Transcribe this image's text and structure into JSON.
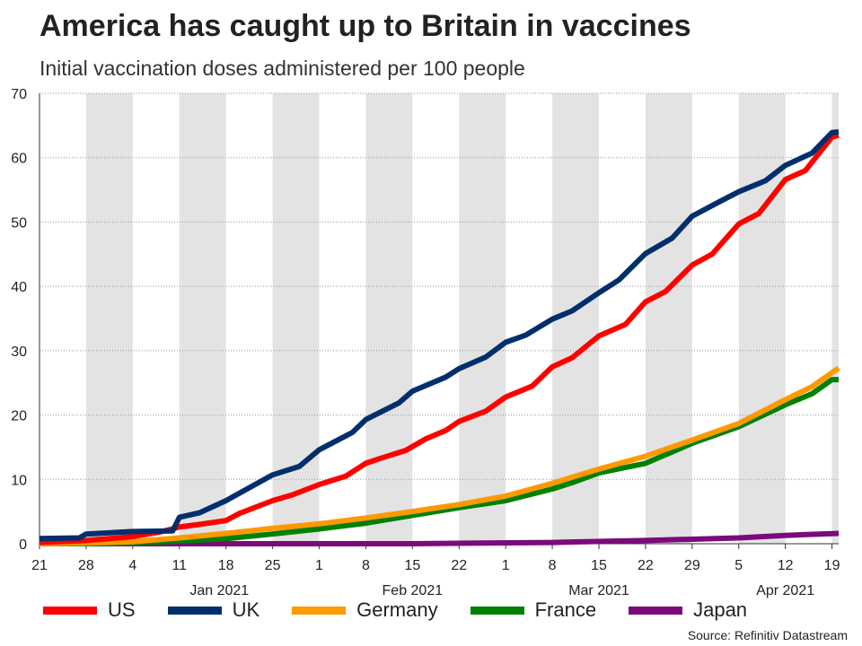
{
  "header": {
    "title": "America has caught up to Britain in vaccines",
    "subtitle": "Initial vaccination doses administered per 100 people"
  },
  "source": "Source: Refinitiv Datastream",
  "chart_data": {
    "type": "line",
    "title": "America has caught up to Britain in vaccines",
    "subtitle": "Initial vaccination doses administered per 100 people",
    "xlabel": "",
    "ylabel": "Initial vaccination doses administered per 100 people",
    "x_start": "2020-12-21",
    "x_days": 120,
    "ylim": [
      0,
      70
    ],
    "y_ticks": [
      0,
      10,
      20,
      30,
      40,
      50,
      60,
      70
    ],
    "y_tick_labels": [
      "0",
      "10",
      "20",
      "30",
      "40",
      "50",
      "60",
      "70"
    ],
    "x_ticks": [
      {
        "day": 0,
        "label": "21"
      },
      {
        "day": 7,
        "label": "28"
      },
      {
        "day": 14,
        "label": "4"
      },
      {
        "day": 21,
        "label": "11"
      },
      {
        "day": 28,
        "label": "18"
      },
      {
        "day": 35,
        "label": "25"
      },
      {
        "day": 42,
        "label": "1"
      },
      {
        "day": 49,
        "label": "8"
      },
      {
        "day": 56,
        "label": "15"
      },
      {
        "day": 63,
        "label": "22"
      },
      {
        "day": 70,
        "label": "1"
      },
      {
        "day": 77,
        "label": "8"
      },
      {
        "day": 84,
        "label": "15"
      },
      {
        "day": 91,
        "label": "22"
      },
      {
        "day": 98,
        "label": "29"
      },
      {
        "day": 105,
        "label": "5"
      },
      {
        "day": 112,
        "label": "12"
      },
      {
        "day": 119,
        "label": "19"
      }
    ],
    "month_labels": [
      {
        "day": 27,
        "label": "Jan 2021"
      },
      {
        "day": 56,
        "label": "Feb 2021"
      },
      {
        "day": 84,
        "label": "Mar 2021"
      },
      {
        "day": 112,
        "label": "Apr 2021"
      }
    ],
    "shaded_week_starts": [
      7,
      21,
      35,
      49,
      63,
      77,
      91,
      105,
      119
    ],
    "grid": true,
    "legend_position": "bottom",
    "series": [
      {
        "name": "US",
        "color": "#ff0000",
        "x": [
          0,
          7,
          14,
          18,
          21,
          24,
          28,
          30,
          35,
          38,
          42,
          46,
          49,
          51,
          55,
          58,
          61,
          63,
          67,
          70,
          74,
          77,
          80,
          84,
          88,
          91,
          94,
          98,
          101,
          105,
          108,
          112,
          115,
          119,
          120
        ],
        "y": [
          0.2,
          0.5,
          1.1,
          1.8,
          2.6,
          3.0,
          3.6,
          4.7,
          6.7,
          7.6,
          9.2,
          10.5,
          12.5,
          13.2,
          14.5,
          16.3,
          17.6,
          19.0,
          20.6,
          22.8,
          24.5,
          27.5,
          28.9,
          32.3,
          34.1,
          37.6,
          39.2,
          43.3,
          45.0,
          49.7,
          51.3,
          56.6,
          58.0,
          63.2,
          63.5
        ]
      },
      {
        "name": "UK",
        "color": "#002f6c",
        "x": [
          0,
          6,
          7,
          14,
          20,
          21,
          24,
          28,
          35,
          39,
          42,
          47,
          49,
          54,
          56,
          61,
          63,
          67,
          70,
          73,
          77,
          80,
          84,
          87,
          91,
          95,
          98,
          102,
          105,
          109,
          112,
          116,
          119,
          120
        ],
        "y": [
          0.8,
          0.9,
          1.5,
          1.9,
          2.0,
          4.1,
          4.8,
          6.7,
          10.7,
          12.0,
          14.6,
          17.3,
          19.3,
          21.9,
          23.7,
          25.9,
          27.2,
          29.0,
          31.3,
          32.4,
          34.9,
          36.2,
          39.0,
          41.0,
          45.1,
          47.5,
          50.9,
          53.1,
          54.7,
          56.4,
          58.8,
          60.7,
          63.9,
          64.0
        ]
      },
      {
        "name": "Germany",
        "color": "#ff9900",
        "x": [
          0,
          7,
          14,
          21,
          28,
          35,
          42,
          49,
          56,
          63,
          70,
          77,
          84,
          91,
          98,
          105,
          112,
          116,
          120
        ],
        "y": [
          0.0,
          0.1,
          0.3,
          0.9,
          1.6,
          2.4,
          3.1,
          4.0,
          5.0,
          6.1,
          7.4,
          9.4,
          11.6,
          13.6,
          16.1,
          18.7,
          22.4,
          24.4,
          27.3
        ]
      },
      {
        "name": "France",
        "color": "#008000",
        "x": [
          0,
          7,
          14,
          21,
          28,
          35,
          42,
          49,
          56,
          63,
          70,
          77,
          80,
          84,
          91,
          98,
          105,
          112,
          116,
          119,
          120
        ],
        "y": [
          0.0,
          0.0,
          0.1,
          0.4,
          0.8,
          1.5,
          2.3,
          3.2,
          4.4,
          5.6,
          6.7,
          8.5,
          9.5,
          11.0,
          12.5,
          15.6,
          18.2,
          21.6,
          23.3,
          25.5,
          25.5
        ]
      },
      {
        "name": "Japan",
        "color": "#7b0a7b",
        "x": [
          0,
          35,
          56,
          77,
          91,
          105,
          112,
          120
        ],
        "y": [
          0.0,
          0.0,
          0.0,
          0.2,
          0.5,
          0.9,
          1.3,
          1.6
        ]
      }
    ]
  }
}
